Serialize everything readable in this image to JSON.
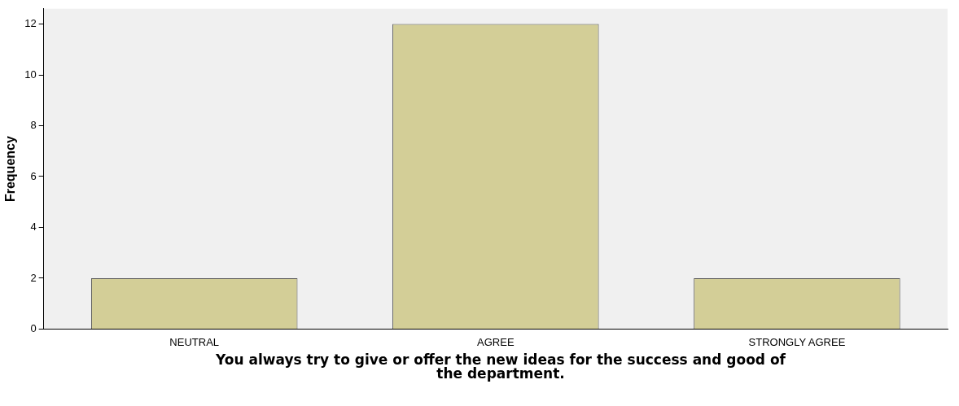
{
  "chart_data": {
    "type": "bar",
    "xlabel": "You always try to give or offer the new ideas for the success and good of the department.",
    "ylabel": "Frequency",
    "categories": [
      "NEUTRAL",
      "AGREE",
      "STRONGLY AGREE"
    ],
    "values": [
      2,
      12,
      2
    ],
    "color": "#d3ce97",
    "ylim": [
      0,
      12.6
    ],
    "yticks": [
      0,
      2,
      4,
      6,
      8,
      10,
      12
    ],
    "grid": false,
    "legend": false
  }
}
